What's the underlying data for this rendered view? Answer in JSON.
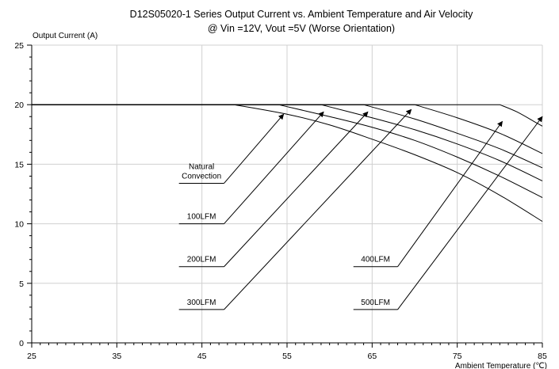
{
  "chart_data": {
    "type": "line",
    "title": "D12S05020-1 Series Output Current vs. Ambient Temperature and Air Velocity",
    "subtitle": "@ Vin =12V, Vout =5V (Worse Orientation)",
    "xlabel": "Ambient Temperature (℃)",
    "ylabel": "Output Current (A)",
    "xlim": [
      25,
      85
    ],
    "ylim": [
      0,
      25
    ],
    "xticks": [
      25,
      35,
      45,
      55,
      65,
      75,
      85
    ],
    "yticks": [
      0,
      5,
      10,
      15,
      20,
      25
    ],
    "x_minor_step": 1,
    "y_minor_step": 1,
    "grid": true,
    "series": [
      {
        "name": "Natural Convection",
        "x": [
          25,
          48.8,
          55,
          60,
          65,
          70,
          75,
          80,
          85
        ],
        "y": [
          20,
          20,
          19.2,
          18.3,
          17.1,
          15.8,
          14.3,
          12.4,
          10.2
        ]
      },
      {
        "name": "100LFM",
        "x": [
          25,
          54,
          60,
          65,
          70,
          75,
          80,
          85
        ],
        "y": [
          20,
          20,
          19.0,
          18.1,
          17.0,
          15.6,
          14.0,
          12.2
        ]
      },
      {
        "name": "200LFM",
        "x": [
          25,
          59,
          65,
          70,
          75,
          80,
          85
        ],
        "y": [
          20,
          20,
          18.9,
          17.9,
          16.7,
          15.3,
          13.6
        ]
      },
      {
        "name": "300LFM",
        "x": [
          25,
          64,
          70,
          75,
          80,
          85
        ],
        "y": [
          20,
          20,
          18.8,
          17.6,
          16.3,
          14.7
        ]
      },
      {
        "name": "400LFM",
        "x": [
          25,
          70,
          75,
          80,
          85
        ],
        "y": [
          20,
          20,
          18.9,
          17.6,
          15.9
        ]
      },
      {
        "name": "500LFM",
        "x": [
          25,
          80,
          82,
          84,
          85
        ],
        "y": [
          20,
          20,
          19.4,
          18.6,
          18.2
        ]
      }
    ],
    "annotations": [
      {
        "label_lines": [
          "Natural",
          "Convection"
        ],
        "underline_x": [
          42.3,
          47.6
        ],
        "underline_y": 13.4,
        "arrow_to": [
          54.6,
          19.2
        ]
      },
      {
        "label_lines": [
          "100LFM"
        ],
        "underline_x": [
          42.3,
          47.6
        ],
        "underline_y": 10.0,
        "arrow_to": [
          59.3,
          19.4
        ]
      },
      {
        "label_lines": [
          "200LFM"
        ],
        "underline_x": [
          42.3,
          47.6
        ],
        "underline_y": 6.4,
        "arrow_to": [
          64.5,
          19.4
        ]
      },
      {
        "label_lines": [
          "300LFM"
        ],
        "underline_x": [
          42.3,
          47.6
        ],
        "underline_y": 2.8,
        "arrow_to": [
          69.6,
          19.6
        ]
      },
      {
        "label_lines": [
          "400LFM"
        ],
        "underline_x": [
          62.8,
          68.0
        ],
        "underline_y": 6.4,
        "arrow_to": [
          80.3,
          18.6
        ]
      },
      {
        "label_lines": [
          "500LFM"
        ],
        "underline_x": [
          62.8,
          68.0
        ],
        "underline_y": 2.8,
        "arrow_to": [
          85.0,
          19.0
        ]
      }
    ]
  }
}
